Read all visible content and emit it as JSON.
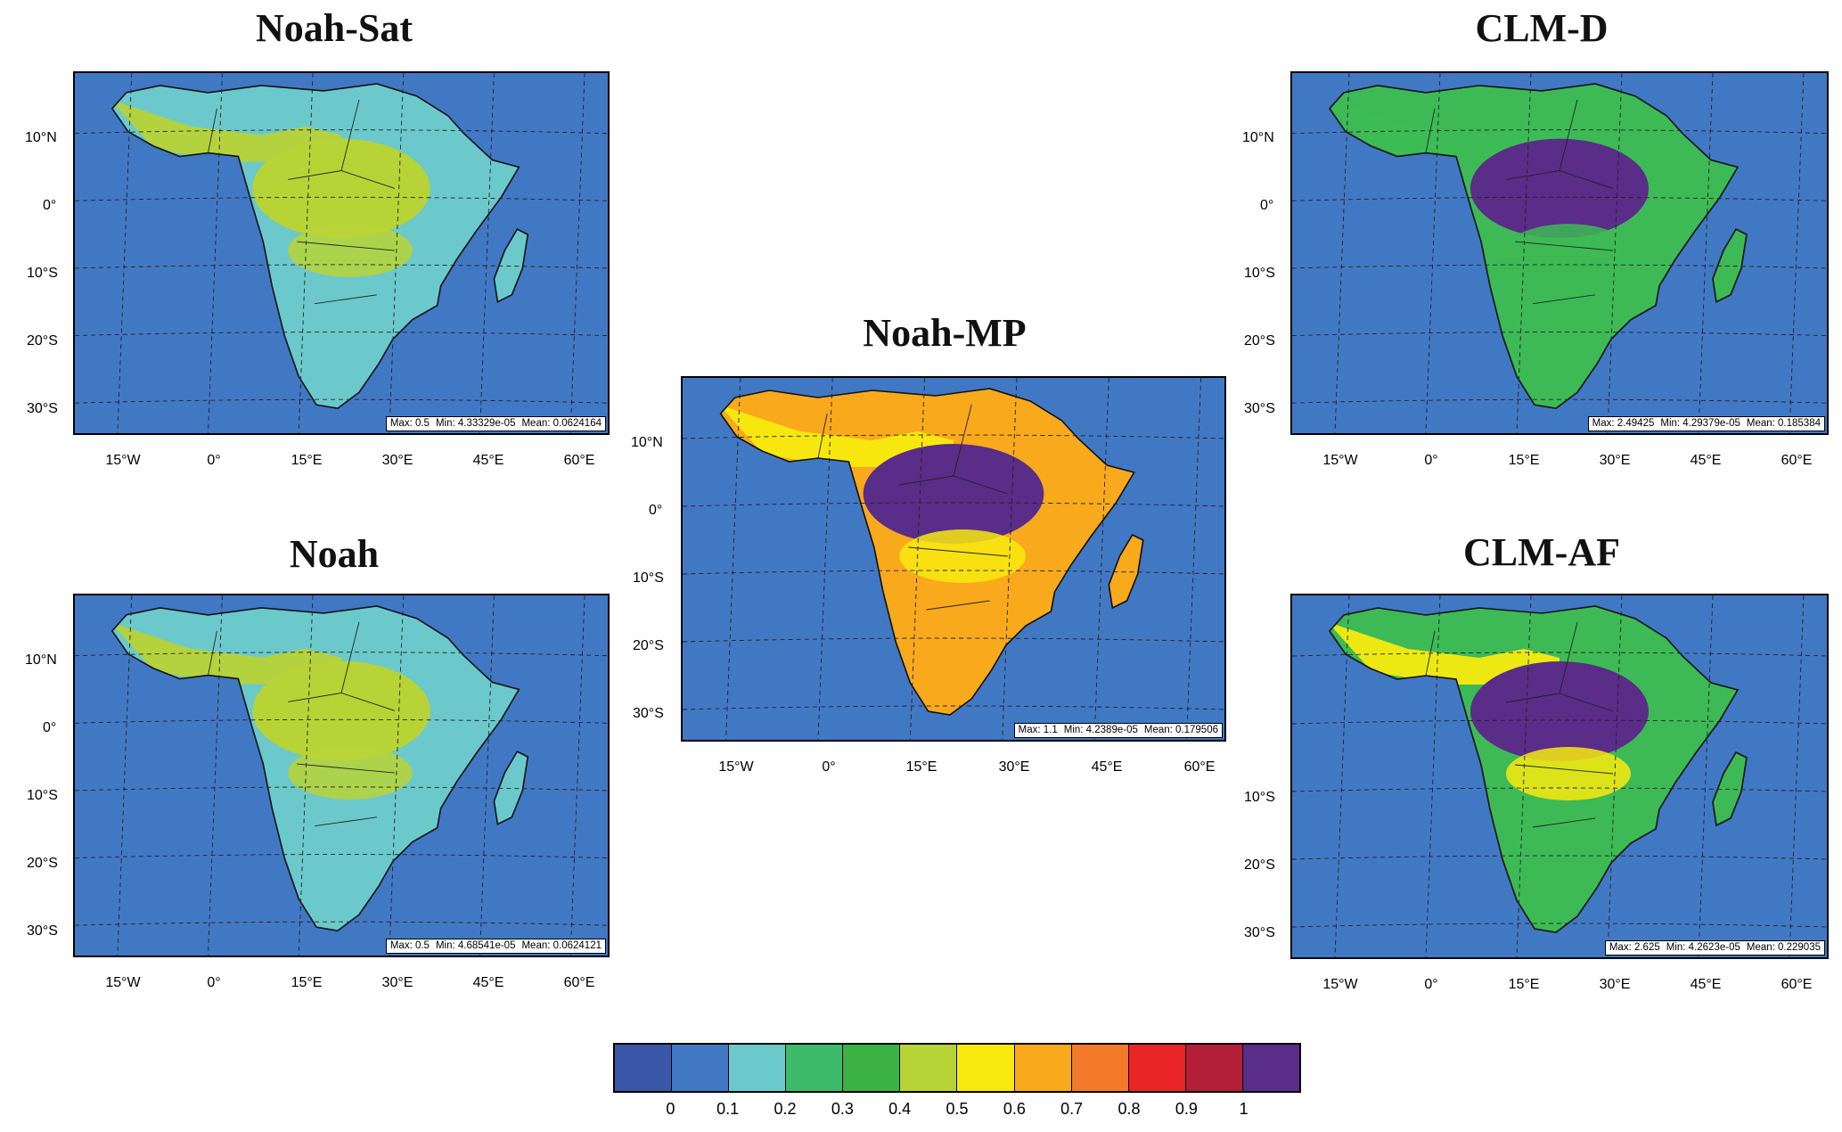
{
  "panels": [
    {
      "id": "noah-sat",
      "title": "Noah-Sat",
      "max": "Max: 0.5",
      "min": "Min: 4.33329e-05",
      "mean": "Mean: 0.0624164",
      "lat_labels": [
        "10°N",
        "0°",
        "10°S",
        "20°S",
        "30°S"
      ],
      "lon_labels": [
        "15°W",
        "0°",
        "15°E",
        "30°E",
        "45°E",
        "60°E"
      ],
      "palette": {
        "low": "#6cc9cb",
        "high": "#b8d336",
        "accent": "#b8d336"
      }
    },
    {
      "id": "noah",
      "title": "Noah",
      "max": "Max: 0.5",
      "min": "Min: 4.68541e-05",
      "mean": "Mean: 0.0624121",
      "lat_labels": [
        "10°N",
        "0°",
        "10°S",
        "20°S",
        "30°S"
      ],
      "lon_labels": [
        "15°W",
        "0°",
        "15°E",
        "30°E",
        "45°E",
        "60°E"
      ],
      "palette": {
        "low": "#6cc9cb",
        "high": "#b8d336",
        "accent": "#b8d336"
      }
    },
    {
      "id": "noah-mp",
      "title": "Noah-MP",
      "max": "Max: 1.1",
      "min": "Min: 4.2389e-05",
      "mean": "Mean: 0.179506",
      "lat_labels": [
        "10°N",
        "0°",
        "10°S",
        "20°S",
        "30°S"
      ],
      "lon_labels": [
        "15°W",
        "0°",
        "15°E",
        "30°E",
        "45°E",
        "60°E"
      ],
      "palette": {
        "low": "#f8a91c",
        "high": "#5a2d88",
        "accent": "#f8ea0f"
      }
    },
    {
      "id": "clm-d",
      "title": "CLM-D",
      "max": "Max: 2.49425",
      "min": "Min: 4.29379e-05",
      "mean": "Mean: 0.185384",
      "lat_labels": [
        "10°N",
        "0°",
        "10°S",
        "20°S",
        "30°S"
      ],
      "lon_labels": [
        "15°W",
        "0°",
        "15°E",
        "30°E",
        "45°E",
        "60°E"
      ],
      "palette": {
        "low": "#3dba55",
        "high": "#5a2d88",
        "accent": "#3dba55"
      }
    },
    {
      "id": "clm-af",
      "title": "CLM-AF",
      "max": "Max: 2.625",
      "min": "Min: 4.2623e-05",
      "mean": "Mean: 0.229035",
      "lat_labels": [
        "10°S",
        "20°S",
        "30°S"
      ],
      "lon_labels": [
        "15°W",
        "0°",
        "15°E",
        "30°E",
        "45°E",
        "60°E"
      ],
      "palette": {
        "low": "#3dba55",
        "high": "#5a2d88",
        "accent": "#f8ea0f"
      }
    }
  ],
  "colorbar": {
    "colors": [
      "#3a57a7",
      "#4178c4",
      "#6cc9cb",
      "#3dba6a",
      "#3db244",
      "#b8d336",
      "#f8ea0f",
      "#f8a91c",
      "#f47a2a",
      "#ea2526",
      "#b31f38",
      "#5a2d88"
    ],
    "labels": [
      "0",
      "0.1",
      "0.2",
      "0.3",
      "0.4",
      "0.5",
      "0.6",
      "0.7",
      "0.8",
      "0.9",
      "1"
    ]
  }
}
